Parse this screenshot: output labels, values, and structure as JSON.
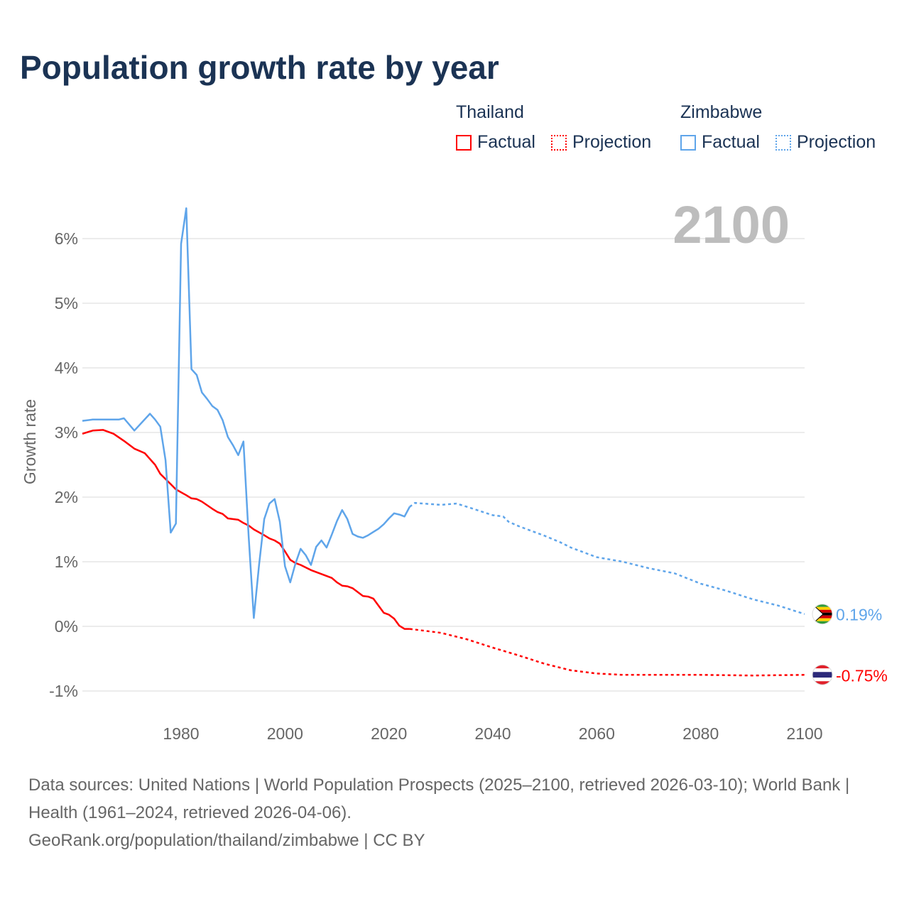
{
  "title": "Population growth rate by year",
  "legend": {
    "groups": [
      {
        "name": "Thailand",
        "color": "#ff0000",
        "factual": "Factual",
        "projection": "Projection"
      },
      {
        "name": "Zimbabwe",
        "color": "#5fa5ea",
        "factual": "Factual",
        "projection": "Projection"
      }
    ]
  },
  "year_watermark": "2100",
  "footer": {
    "sources": "Data sources: United Nations | World Population Prospects (2025–2100, retrieved 2026-03-10); World Bank | Health (1961–2024, retrieved 2026-04-06).",
    "credit": "GeoRank.org/population/thailand/zimbabwe | CC BY"
  },
  "chart_data": {
    "type": "line",
    "title": "Population growth rate by year",
    "xlabel": "",
    "ylabel": "Growth rate",
    "xlim": [
      1961,
      2100
    ],
    "ylim": [
      -1.1,
      6.6
    ],
    "xticks": [
      1980,
      2000,
      2020,
      2040,
      2060,
      2080,
      2100
    ],
    "xtick_labels": [
      "1980",
      "2000",
      "2020",
      "2040",
      "2060",
      "2080",
      "2100"
    ],
    "yticks": [
      -1,
      0,
      1,
      2,
      3,
      4,
      5,
      6
    ],
    "ytick_labels": [
      "-1%",
      "0%",
      "1%",
      "2%",
      "3%",
      "4%",
      "5%",
      "6%"
    ],
    "grid": true,
    "legend_position": "top-right",
    "series": [
      {
        "name": "Thailand",
        "color": "#ff0000",
        "end_label": "-0.75%",
        "factual": {
          "x": [
            1961,
            1963,
            1965,
            1967,
            1969,
            1971,
            1973,
            1975,
            1976,
            1978,
            1979,
            1981,
            1982,
            1983,
            1984,
            1986,
            1987,
            1988,
            1989,
            1991,
            1992,
            1993,
            1994,
            1996,
            1997,
            1998,
            1999,
            2000,
            2001,
            2002,
            2003,
            2005,
            2007,
            2009,
            2010,
            2011,
            2012,
            2013,
            2015,
            2016,
            2017,
            2018,
            2019,
            2020,
            2021,
            2022,
            2023,
            2024
          ],
          "y": [
            2.98,
            3.03,
            3.04,
            2.98,
            2.87,
            2.75,
            2.68,
            2.5,
            2.36,
            2.2,
            2.12,
            2.03,
            1.98,
            1.97,
            1.93,
            1.82,
            1.77,
            1.74,
            1.67,
            1.65,
            1.6,
            1.56,
            1.5,
            1.41,
            1.36,
            1.33,
            1.28,
            1.16,
            1.03,
            0.98,
            0.95,
            0.87,
            0.81,
            0.75,
            0.68,
            0.63,
            0.62,
            0.59,
            0.47,
            0.46,
            0.43,
            0.32,
            0.21,
            0.18,
            0.12,
            0.01,
            -0.04,
            -0.04
          ]
        },
        "projection": {
          "x": [
            2024,
            2025,
            2030,
            2035,
            2040,
            2045,
            2050,
            2055,
            2060,
            2065,
            2070,
            2080,
            2090,
            2100
          ],
          "y": [
            -0.04,
            -0.05,
            -0.1,
            -0.2,
            -0.33,
            -0.45,
            -0.58,
            -0.68,
            -0.73,
            -0.75,
            -0.75,
            -0.75,
            -0.76,
            -0.75
          ]
        }
      },
      {
        "name": "Zimbabwe",
        "color": "#5fa5ea",
        "end_label": "0.19%",
        "factual": {
          "x": [
            1961,
            1963,
            1965,
            1968,
            1969,
            1971,
            1974,
            1975,
            1976,
            1977,
            1978,
            1979,
            1980,
            1981,
            1982,
            1983,
            1984,
            1985,
            1986,
            1987,
            1988,
            1989,
            1990,
            1991,
            1992,
            1993,
            1994,
            1995,
            1996,
            1997,
            1998,
            1999,
            2000,
            2001,
            2002,
            2003,
            2004,
            2005,
            2006,
            2007,
            2008,
            2009,
            2010,
            2011,
            2012,
            2013,
            2014,
            2015,
            2016,
            2017,
            2018,
            2019,
            2020,
            2021,
            2022,
            2023,
            2024
          ],
          "y": [
            3.18,
            3.2,
            3.2,
            3.2,
            3.22,
            3.03,
            3.29,
            3.2,
            3.09,
            2.57,
            1.45,
            1.59,
            5.92,
            6.47,
            3.98,
            3.89,
            3.62,
            3.52,
            3.41,
            3.35,
            3.19,
            2.93,
            2.8,
            2.65,
            2.86,
            1.4,
            0.13,
            0.95,
            1.66,
            1.9,
            1.97,
            1.62,
            0.93,
            0.68,
            0.97,
            1.2,
            1.1,
            0.95,
            1.23,
            1.33,
            1.22,
            1.42,
            1.63,
            1.8,
            1.66,
            1.43,
            1.39,
            1.37,
            1.41,
            1.46,
            1.51,
            1.58,
            1.67,
            1.75,
            1.73,
            1.7,
            1.85
          ]
        },
        "projection": {
          "x": [
            2024,
            2025,
            2030,
            2033,
            2035,
            2040,
            2042,
            2043,
            2045,
            2050,
            2053,
            2055,
            2060,
            2065,
            2070,
            2075,
            2080,
            2085,
            2090,
            2095,
            2100
          ],
          "y": [
            1.85,
            1.91,
            1.88,
            1.9,
            1.85,
            1.72,
            1.7,
            1.62,
            1.55,
            1.4,
            1.3,
            1.22,
            1.07,
            1.0,
            0.9,
            0.82,
            0.66,
            0.55,
            0.42,
            0.32,
            0.19
          ]
        }
      }
    ]
  }
}
